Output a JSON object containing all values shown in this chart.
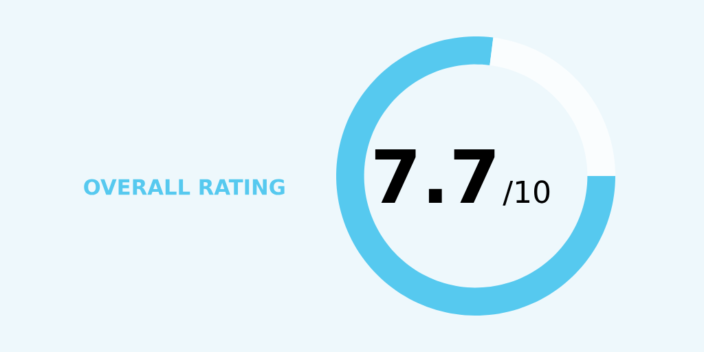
{
  "chart_data": {
    "type": "donut",
    "title": "OVERALL RATING",
    "categories": [
      null,
      null
    ],
    "values": [
      77,
      23
    ],
    "colors": [
      "#56c9ef",
      "#fafdfe"
    ],
    "annotations": [
      "7.7",
      "/10"
    ]
  }
}
